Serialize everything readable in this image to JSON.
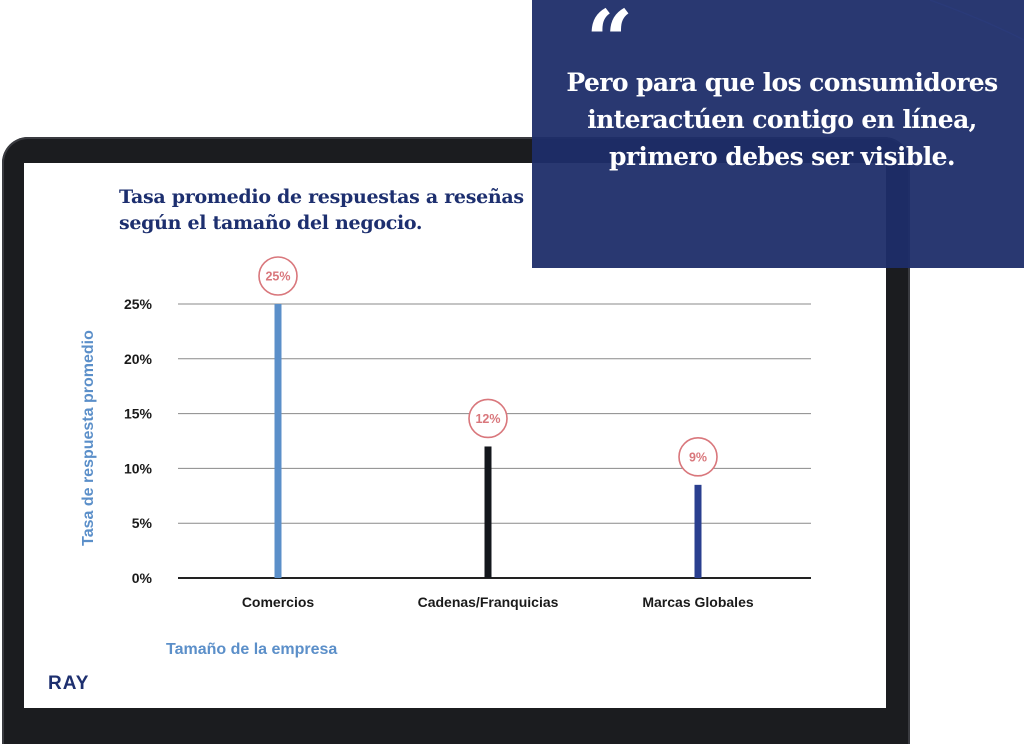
{
  "chart_data": {
    "type": "bar",
    "title": "Tasa promedio de respuestas a reseñas según el tamaño del negocio.",
    "xlabel": "Tamaño de la empresa",
    "ylabel": "Tasa de respuesta promedio",
    "categories": [
      "Comercios",
      "Cadenas/Franquicias",
      "Marcas Globales"
    ],
    "values": [
      25,
      12,
      8.5
    ],
    "data_labels": [
      "25%",
      "12%",
      "9%"
    ],
    "bar_colors": [
      "#5b8fc9",
      "#14171c",
      "#2a3f8f"
    ],
    "label_color": "#d9777c",
    "ylim": [
      0,
      25
    ],
    "yticks": [
      0,
      5,
      10,
      15,
      20,
      25
    ],
    "ytick_labels": [
      "0%",
      "5%",
      "10%",
      "15%",
      "20%",
      "25%"
    ],
    "grid": true,
    "legend": "none"
  },
  "brand": {
    "logo_text": "RAY"
  },
  "quote": {
    "mark": "“",
    "text": "Pero para que los consumidores interactúen contigo en línea, primero debes ser visible."
  },
  "colors": {
    "navy": "#1d2f6f",
    "accent_blue": "#5b8fc9",
    "quote_bg": "#1e2d69"
  }
}
